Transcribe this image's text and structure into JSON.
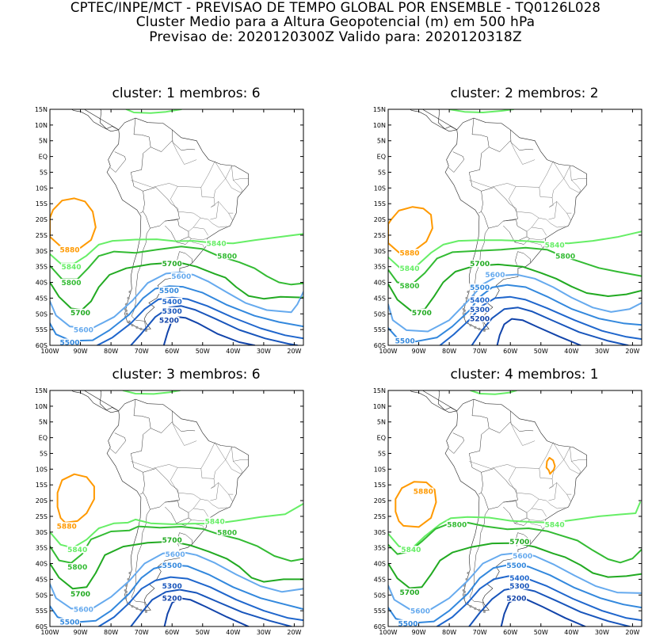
{
  "header": {
    "line1": "CPTEC/INPE/MCT - PREVISAO DE TEMPO GLOBAL POR ENSEMBLE - TQ0126L028",
    "line2": "Cluster Medio para a Altura Geopotencial (m) em 500 hPa",
    "line3": "Previsao de: 2020120300Z    Valido para: 2020120318Z"
  },
  "axes": {
    "lat_labels": [
      "15N",
      "10N",
      "5N",
      "EQ",
      "5S",
      "10S",
      "15S",
      "20S",
      "25S",
      "30S",
      "35S",
      "40S",
      "45S",
      "50S",
      "55S",
      "60S"
    ],
    "lon_labels": [
      "100W",
      "90W",
      "80W",
      "70W",
      "60W",
      "50W",
      "40W",
      "30W",
      "20W"
    ],
    "lon_range": [
      -100,
      -17
    ],
    "lat_range": [
      -60,
      15
    ]
  },
  "colors": {
    "c5880": "#ff9900",
    "c5840": "#66ee66",
    "c5800": "#33bb33",
    "c5700": "#22aa22",
    "c5600": "#66aaee",
    "c5500": "#3388dd",
    "c5400": "#1f66cc",
    "c5300": "#1855bb",
    "c5200": "#1244aa",
    "coast": "#888888"
  },
  "panels": [
    {
      "title": "cluster: 1   membros: 6",
      "labels": [
        {
          "text": "5880",
          "lon": -93.5,
          "lat": -29.5,
          "color": "c5880"
        },
        {
          "text": "5840",
          "lon": -93,
          "lat": -35,
          "color": "c5840"
        },
        {
          "text": "5840",
          "lon": -45.5,
          "lat": -27.5,
          "color": "c5840"
        },
        {
          "text": "5800",
          "lon": -93,
          "lat": -40,
          "color": "c5800"
        },
        {
          "text": "5800",
          "lon": -42,
          "lat": -31.5,
          "color": "c5800"
        },
        {
          "text": "5700",
          "lon": -90,
          "lat": -49.5,
          "color": "c5700"
        },
        {
          "text": "5700",
          "lon": -60,
          "lat": -34,
          "color": "c5700"
        },
        {
          "text": "5600",
          "lon": -89,
          "lat": -55,
          "color": "c5600"
        },
        {
          "text": "5600",
          "lon": -57,
          "lat": -38,
          "color": "c5600"
        },
        {
          "text": "5500",
          "lon": -93.5,
          "lat": -59,
          "color": "c5500"
        },
        {
          "text": "5500",
          "lon": -61,
          "lat": -42.5,
          "color": "c5500"
        },
        {
          "text": "5400",
          "lon": -60,
          "lat": -46,
          "color": "c5400"
        },
        {
          "text": "5300",
          "lon": -60,
          "lat": -49,
          "color": "c5300"
        },
        {
          "text": "5200",
          "lon": -61,
          "lat": -52,
          "color": "c5200"
        }
      ]
    },
    {
      "title": "cluster: 2   membros: 2",
      "labels": [
        {
          "text": "5880",
          "lon": -93,
          "lat": -30.5,
          "color": "c5880"
        },
        {
          "text": "5840",
          "lon": -93,
          "lat": -35.5,
          "color": "c5840"
        },
        {
          "text": "5840",
          "lon": -45.5,
          "lat": -28,
          "color": "c5840"
        },
        {
          "text": "5800",
          "lon": -93,
          "lat": -41,
          "color": "c5800"
        },
        {
          "text": "5800",
          "lon": -42,
          "lat": -31.5,
          "color": "c5800"
        },
        {
          "text": "5700",
          "lon": -89,
          "lat": -49.5,
          "color": "c5700"
        },
        {
          "text": "5700",
          "lon": -70,
          "lat": -34,
          "color": "c5700"
        },
        {
          "text": "5600",
          "lon": -65,
          "lat": -37.5,
          "color": "c5600"
        },
        {
          "text": "5500",
          "lon": -94.5,
          "lat": -58.5,
          "color": "c5500"
        },
        {
          "text": "5500",
          "lon": -70,
          "lat": -41.5,
          "color": "c5500"
        },
        {
          "text": "5400",
          "lon": -70,
          "lat": -45.5,
          "color": "c5400"
        },
        {
          "text": "5300",
          "lon": -70,
          "lat": -48.5,
          "color": "c5300"
        },
        {
          "text": "5200",
          "lon": -70,
          "lat": -51.5,
          "color": "c5200"
        }
      ]
    },
    {
      "title": "cluster: 3   membros: 6",
      "labels": [
        {
          "text": "5880",
          "lon": -94.5,
          "lat": -28,
          "color": "c5880"
        },
        {
          "text": "5840",
          "lon": -91,
          "lat": -35.5,
          "color": "c5840"
        },
        {
          "text": "5840",
          "lon": -46,
          "lat": -26.5,
          "color": "c5840"
        },
        {
          "text": "5800",
          "lon": -91,
          "lat": -41,
          "color": "c5800"
        },
        {
          "text": "5800",
          "lon": -42,
          "lat": -30,
          "color": "c5800"
        },
        {
          "text": "5700",
          "lon": -90,
          "lat": -49.5,
          "color": "c5700"
        },
        {
          "text": "5700",
          "lon": -60,
          "lat": -32.5,
          "color": "c5700"
        },
        {
          "text": "5600",
          "lon": -89,
          "lat": -54.5,
          "color": "c5600"
        },
        {
          "text": "5600",
          "lon": -59,
          "lat": -37,
          "color": "c5600"
        },
        {
          "text": "5500",
          "lon": -93.5,
          "lat": -58.5,
          "color": "c5500"
        },
        {
          "text": "5500",
          "lon": -60,
          "lat": -40.5,
          "color": "c5500"
        },
        {
          "text": "5300",
          "lon": -60,
          "lat": -47,
          "color": "c5300"
        },
        {
          "text": "5200",
          "lon": -60,
          "lat": -51,
          "color": "c5200"
        }
      ]
    },
    {
      "title": "cluster: 4   membros: 1",
      "labels": [
        {
          "text": "5880",
          "lon": -88.5,
          "lat": -17,
          "color": "c5880"
        },
        {
          "text": "5840",
          "lon": -92.5,
          "lat": -35.5,
          "color": "c5840"
        },
        {
          "text": "5840",
          "lon": -45.5,
          "lat": -27.5,
          "color": "c5840"
        },
        {
          "text": "5800",
          "lon": -77.5,
          "lat": -27.5,
          "color": "c5800"
        },
        {
          "text": "5700",
          "lon": -93,
          "lat": -49,
          "color": "c5700"
        },
        {
          "text": "5700",
          "lon": -57,
          "lat": -33,
          "color": "c5700"
        },
        {
          "text": "5600",
          "lon": -89.5,
          "lat": -55,
          "color": "c5600"
        },
        {
          "text": "5600",
          "lon": -56,
          "lat": -37.5,
          "color": "c5600"
        },
        {
          "text": "5500",
          "lon": -93.5,
          "lat": -59,
          "color": "c5500"
        },
        {
          "text": "5500",
          "lon": -58,
          "lat": -40.5,
          "color": "c5500"
        },
        {
          "text": "5400",
          "lon": -57,
          "lat": -44.5,
          "color": "c5400"
        },
        {
          "text": "5300",
          "lon": -57,
          "lat": -47,
          "color": "c5300"
        },
        {
          "text": "5200",
          "lon": -58,
          "lat": -51,
          "color": "c5200"
        }
      ]
    }
  ]
}
